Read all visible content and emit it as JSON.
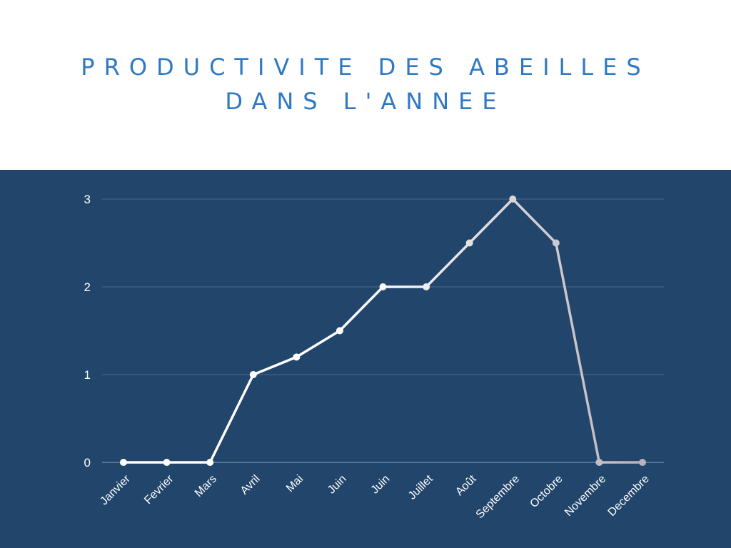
{
  "header": {
    "title_line1": "PRODUCTIVITE DES ABEILLES",
    "title_line2": "DANS L'ANNEE"
  },
  "colors": {
    "background_top": "#ffffff",
    "panel": "#22456b",
    "title": "#2f79c4",
    "line_start": "#ffffff",
    "line_end": "#b9b2bb"
  },
  "chart_data": {
    "type": "line",
    "title": "PRODUCTIVITE DES ABEILLES DANS L'ANNEE",
    "xlabel": "",
    "ylabel": "",
    "categories": [
      "Janvier",
      "Fevrier",
      "Mars",
      "Avril",
      "Mai",
      "Juin",
      "Juin",
      "Juillet",
      "Août",
      "Septembre",
      "Octobre",
      "Novembre",
      "Decembre"
    ],
    "values": [
      0,
      0,
      0,
      1,
      1.2,
      1.5,
      2,
      2,
      2.5,
      3,
      2.5,
      0,
      0
    ],
    "ylim": [
      0,
      3
    ],
    "yticks": [
      0,
      1,
      2,
      3
    ],
    "grid": true,
    "legend": "none"
  }
}
